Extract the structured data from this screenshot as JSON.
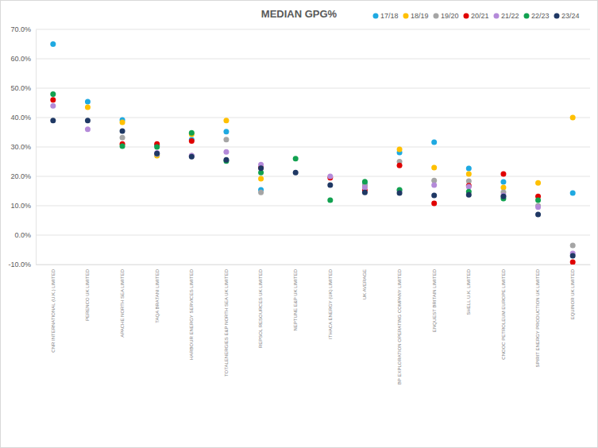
{
  "chart_data": {
    "type": "scatter",
    "title": "MEDIAN GPG%",
    "categories": [
      "CNR INTERNATIONAL (U.K.) LIMITED",
      "PERENCO UK LIMITED",
      "APACHE NORTH SEA LIMITED",
      "TAQA BRATANI LIMITED",
      "HARBOUR ENERGY SERVICES LIMITED",
      "TOTALENERGIES E&P NORTH SEA UK LIMITED",
      "REPSOL RESOURCES UK LIMITED",
      "NEPTUNE E&P UK LIMITED",
      "ITHACA ENERGY (UK) LIMITED",
      "UK AVERAGE",
      "BP EXPLORATION OPERATING COMPANY LIMITED",
      "ENQUEST BRITAIN LIMITED",
      "SHELL U.K. LIMITED",
      "CNOOC PETROLEUM EUROPE LIMITED",
      "SPIRIT ENERGY PRODUCTION UK LIMITED",
      "EQUINOR UK LIMITED"
    ],
    "series": [
      {
        "name": "17/18",
        "color": "#1fa9e1",
        "values": [
          65,
          45.4,
          39.2,
          30.5,
          32.5,
          35.2,
          15.4,
          null,
          null,
          17.6,
          28.1,
          31.6,
          22.7,
          18.1,
          null,
          14.3
        ]
      },
      {
        "name": "18/19",
        "color": "#ffc000",
        "values": [
          null,
          43.5,
          38.4,
          27,
          34.3,
          39,
          19.2,
          null,
          null,
          16.5,
          29.2,
          23,
          20.8,
          16.2,
          17.8,
          40
        ]
      },
      {
        "name": "19/20",
        "color": "#a5a5a5",
        "values": [
          null,
          null,
          33.2,
          27.5,
          27,
          32.5,
          14.5,
          null,
          null,
          17,
          25,
          18.6,
          18.4,
          14.6,
          10,
          -3.5
        ]
      },
      {
        "name": "20/21",
        "color": "#e00000",
        "values": [
          46,
          null,
          31,
          31,
          32,
          null,
          23,
          null,
          19.5,
          15.2,
          23.7,
          10.8,
          16.8,
          20.8,
          13.2,
          -9.2
        ]
      },
      {
        "name": "21/22",
        "color": "#b48ad9",
        "values": [
          44,
          36,
          null,
          28,
          27,
          28.3,
          24,
          null,
          20,
          16.2,
          15.2,
          17,
          16.5,
          13.5,
          9.5,
          -6.2
        ]
      },
      {
        "name": "22/23",
        "color": "#12a150",
        "values": [
          48,
          null,
          30.3,
          30,
          34.8,
          25.2,
          21.3,
          26,
          11.9,
          18.2,
          15.4,
          null,
          14.8,
          12.4,
          11.9,
          null
        ]
      },
      {
        "name": "23/24",
        "color": "#1f3864",
        "values": [
          39,
          39,
          35.4,
          27.8,
          26.7,
          25.6,
          22.8,
          21.3,
          17,
          14.5,
          14.3,
          13.5,
          13.7,
          13.2,
          7,
          -7
        ]
      }
    ],
    "ylim": [
      -10,
      70
    ],
    "yticks": [
      {
        "value": -10,
        "label": "-10.0%"
      },
      {
        "value": 0,
        "label": "0.0%"
      },
      {
        "value": 10,
        "label": "10.0%"
      },
      {
        "value": 20,
        "label": "20.0%"
      },
      {
        "value": 30,
        "label": "30.0%"
      },
      {
        "value": 40,
        "label": "40.0%"
      },
      {
        "value": 50,
        "label": "50.0%"
      },
      {
        "value": 60,
        "label": "60.0%"
      },
      {
        "value": 70,
        "label": "70.0%"
      }
    ],
    "grid": true,
    "legend": "top-right",
    "marker": "circle"
  }
}
